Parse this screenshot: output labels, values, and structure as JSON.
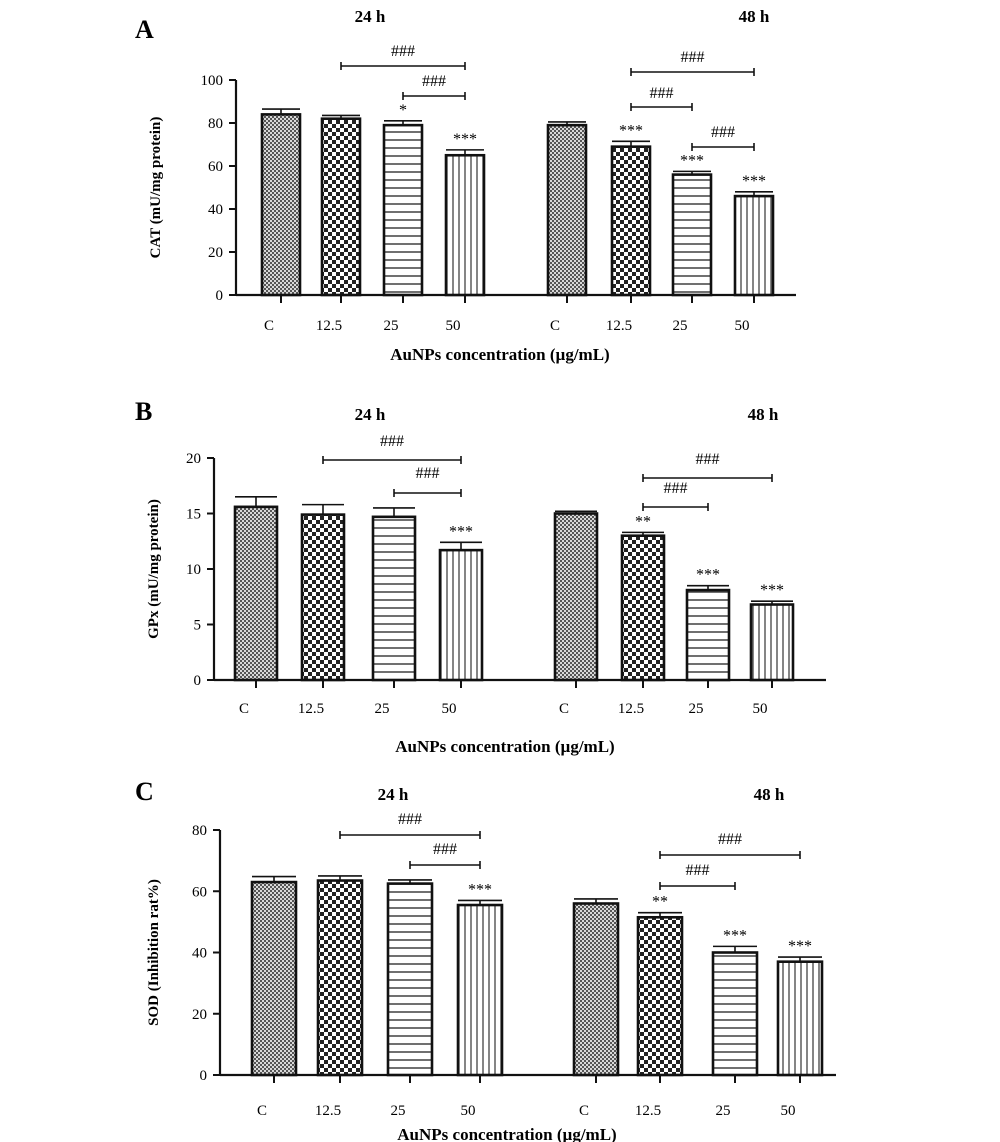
{
  "figure": {
    "x_categories": [
      "C",
      "12.5",
      "25",
      "50"
    ],
    "patterns": [
      "dots",
      "checker",
      "hlines",
      "vlines"
    ],
    "bar_fill": "#ffffff",
    "stroke_color": "#111111"
  },
  "chart_data": [
    {
      "type": "bar",
      "panel_label": "A",
      "group_titles": [
        "24 h",
        "48 h"
      ],
      "groups": [
        "24 h",
        "48 h"
      ],
      "categories": [
        "C",
        "12.5",
        "25",
        "50"
      ],
      "ylabel": "CAT (mU/mg protein)",
      "xlabel": "AuNPs concentration (µg/mL)",
      "ylim": [
        0,
        100
      ],
      "yticks": [
        0,
        20,
        40,
        60,
        80,
        100
      ],
      "values": [
        [
          84,
          82,
          79,
          65
        ],
        [
          79,
          69,
          56,
          46
        ]
      ],
      "errors": [
        [
          2.5,
          1.5,
          2,
          2.5
        ],
        [
          1.5,
          2.5,
          1.5,
          2
        ]
      ],
      "stars": [
        [
          "",
          "",
          "*",
          "***"
        ],
        [
          "",
          "***",
          "***",
          "***"
        ]
      ],
      "brackets": [
        {
          "group": 0,
          "from": 1,
          "to": 3,
          "label": "###"
        },
        {
          "group": 0,
          "from": 2,
          "to": 3,
          "label": "###"
        },
        {
          "group": 1,
          "from": 1,
          "to": 3,
          "label": "###"
        },
        {
          "group": 1,
          "from": 1,
          "to": 2,
          "label": "###"
        },
        {
          "group": 1,
          "from": 2,
          "to": 3,
          "label": "###"
        }
      ]
    },
    {
      "type": "bar",
      "panel_label": "B",
      "group_titles": [
        "24 h",
        "48 h"
      ],
      "groups": [
        "24 h",
        "48 h"
      ],
      "categories": [
        "C",
        "12.5",
        "25",
        "50"
      ],
      "ylabel": "GPx (mU/mg protein)",
      "xlabel": "AuNPs concentration (µg/mL)",
      "ylim": [
        0,
        20
      ],
      "yticks": [
        0,
        5,
        10,
        15,
        20
      ],
      "values": [
        [
          15.6,
          14.9,
          14.7,
          11.7
        ],
        [
          15.0,
          13.0,
          8.1,
          6.8
        ]
      ],
      "errors": [
        [
          0.9,
          0.9,
          0.8,
          0.7
        ],
        [
          0.2,
          0.3,
          0.4,
          0.3
        ]
      ],
      "stars": [
        [
          "",
          "",
          "",
          "***"
        ],
        [
          "",
          "**",
          "***",
          "***"
        ]
      ],
      "brackets": [
        {
          "group": 0,
          "from": 1,
          "to": 3,
          "label": "###"
        },
        {
          "group": 0,
          "from": 2,
          "to": 3,
          "label": "###"
        },
        {
          "group": 1,
          "from": 1,
          "to": 3,
          "label": "###"
        },
        {
          "group": 1,
          "from": 1,
          "to": 2,
          "label": "###"
        }
      ]
    },
    {
      "type": "bar",
      "panel_label": "C",
      "group_titles": [
        "24 h",
        "48 h"
      ],
      "groups": [
        "24 h",
        "48 h"
      ],
      "categories": [
        "C",
        "12.5",
        "25",
        "50"
      ],
      "ylabel": "SOD (Inhibition rat%)",
      "xlabel": "AuNPs concentration (µg/mL)",
      "ylim": [
        0,
        80
      ],
      "yticks": [
        0,
        20,
        40,
        60,
        80
      ],
      "values": [
        [
          63,
          63.5,
          62.5,
          55.5
        ],
        [
          56,
          51.5,
          40,
          37
        ]
      ],
      "errors": [
        [
          1.8,
          1.5,
          1.2,
          1.5
        ],
        [
          1.5,
          1.5,
          2,
          1.5
        ]
      ],
      "stars": [
        [
          "",
          "",
          "",
          "***"
        ],
        [
          "",
          "**",
          "***",
          "***"
        ]
      ],
      "brackets": [
        {
          "group": 0,
          "from": 1,
          "to": 3,
          "label": "###"
        },
        {
          "group": 0,
          "from": 2,
          "to": 3,
          "label": "###"
        },
        {
          "group": 1,
          "from": 1,
          "to": 3,
          "label": "###"
        },
        {
          "group": 1,
          "from": 1,
          "to": 2,
          "label": "###"
        }
      ]
    }
  ]
}
